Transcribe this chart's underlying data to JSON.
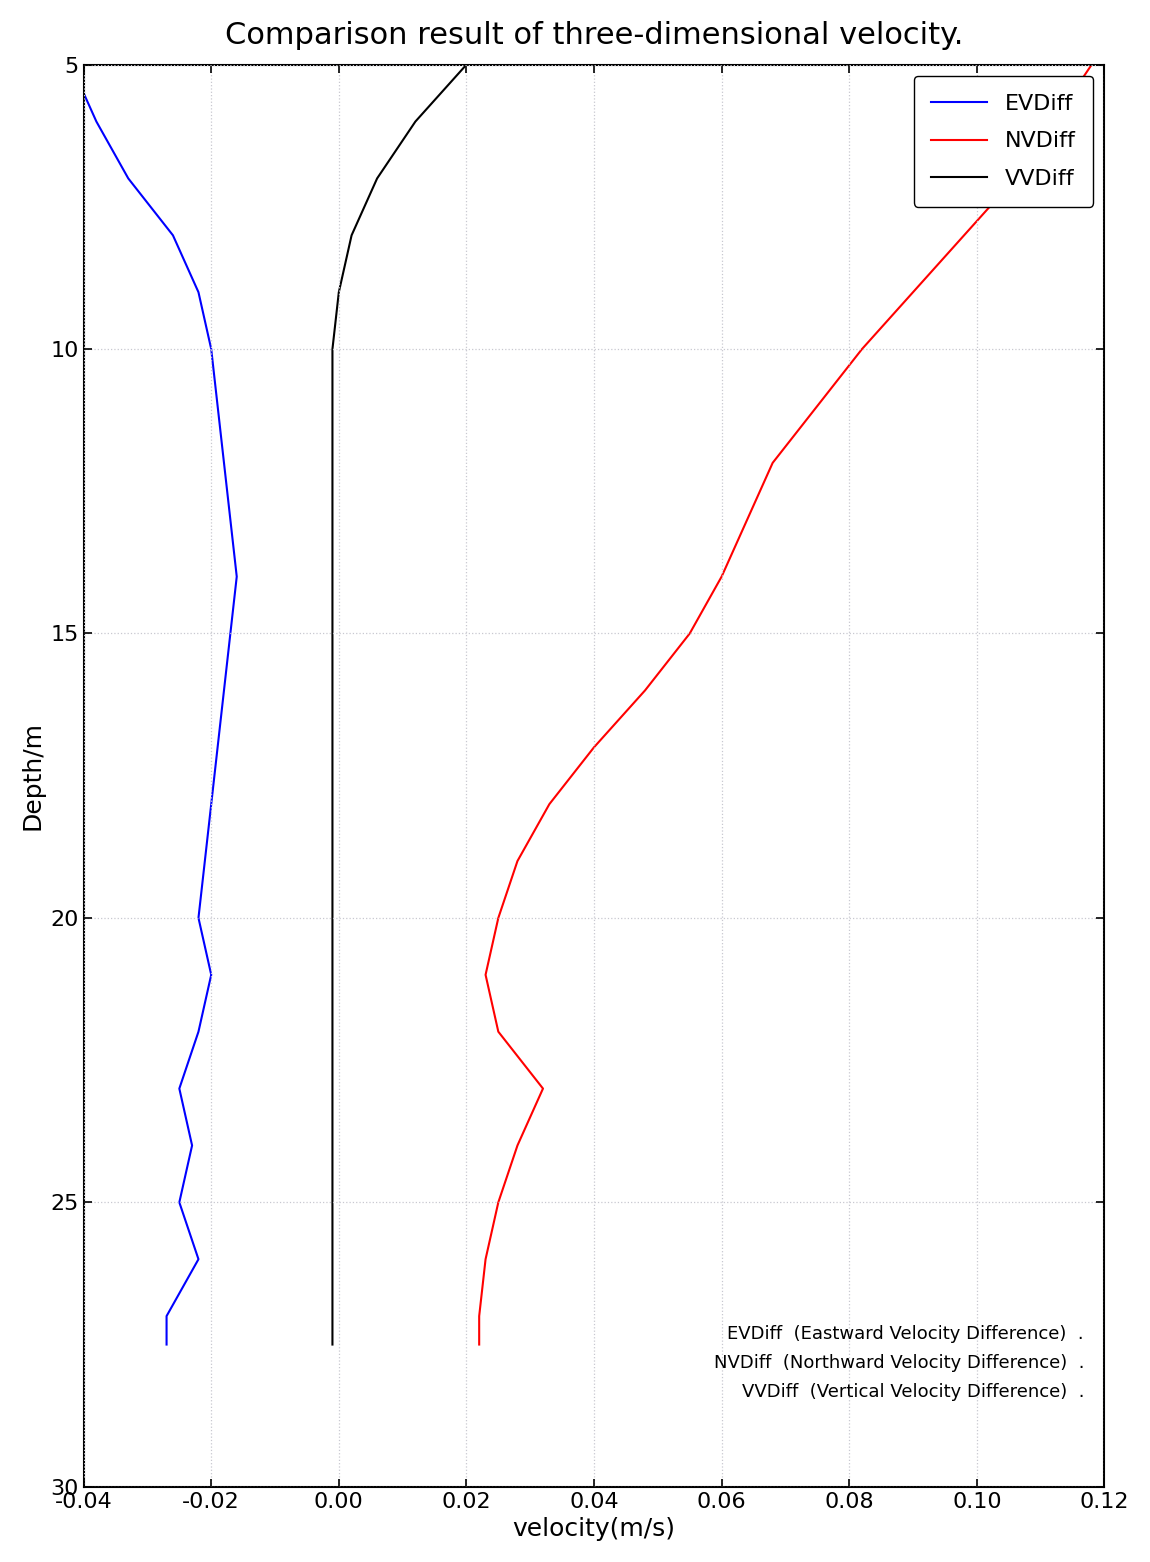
{
  "title": "Comparison result of three-dimensional velocity.",
  "xlabel": "velocity(m/s)",
  "ylabel": "Depth/m",
  "xlim": [
    -0.04,
    0.12
  ],
  "ylim": [
    5,
    30
  ],
  "xticks": [
    -0.04,
    -0.02,
    0.0,
    0.02,
    0.04,
    0.06,
    0.08,
    0.1,
    0.12
  ],
  "yticks": [
    5,
    10,
    15,
    20,
    25,
    30
  ],
  "background_color": "#ffffff",
  "EVDiff_color": "blue",
  "NVDiff_color": "red",
  "VVDiff_color": "black",
  "EVDiff_depth": [
    5,
    6,
    7,
    8,
    9,
    10,
    11,
    12,
    13,
    14,
    15,
    16,
    17,
    18,
    19,
    20,
    21,
    22,
    23,
    24,
    25,
    26,
    27,
    27.5
  ],
  "EVDiff_vel": [
    -0.042,
    -0.038,
    -0.033,
    -0.026,
    -0.022,
    -0.02,
    -0.019,
    -0.018,
    -0.017,
    -0.016,
    -0.017,
    -0.018,
    -0.019,
    -0.02,
    -0.021,
    -0.022,
    -0.02,
    -0.022,
    -0.025,
    -0.023,
    -0.025,
    -0.022,
    -0.027,
    -0.027
  ],
  "NVDiff_depth": [
    5,
    6,
    7,
    8,
    9,
    10,
    11,
    12,
    13,
    14,
    15,
    16,
    17,
    18,
    19,
    20,
    21,
    22,
    23,
    24,
    25,
    26,
    27,
    27.5
  ],
  "NVDiff_vel": [
    0.118,
    0.112,
    0.106,
    0.098,
    0.09,
    0.082,
    0.075,
    0.068,
    0.064,
    0.06,
    0.055,
    0.048,
    0.04,
    0.033,
    0.028,
    0.025,
    0.023,
    0.025,
    0.032,
    0.028,
    0.025,
    0.023,
    0.022,
    0.022
  ],
  "VVDiff_depth": [
    5,
    6,
    7,
    8,
    9,
    10,
    11,
    12,
    13,
    14,
    15,
    16,
    17,
    18,
    19,
    20,
    21,
    22,
    23,
    24,
    25,
    26,
    27,
    27.5
  ],
  "VVDiff_vel": [
    0.02,
    0.012,
    0.006,
    0.002,
    0.0,
    -0.001,
    -0.001,
    -0.001,
    -0.001,
    -0.001,
    -0.001,
    -0.001,
    -0.001,
    -0.001,
    -0.001,
    -0.001,
    -0.001,
    -0.001,
    -0.001,
    -0.001,
    -0.001,
    -0.001,
    -0.001,
    -0.001
  ],
  "annotation_lines": [
    "EVDiff  (Eastward Velocity Difference)  .",
    "NVDiff  (Northward Velocity Difference)  .",
    "VVDiff  (Vertical Velocity Difference)  ."
  ],
  "grid_color": "#c8c8d0",
  "title_fontsize": 22,
  "label_fontsize": 18,
  "tick_fontsize": 16,
  "legend_fontsize": 16,
  "annotation_fontsize": 13
}
